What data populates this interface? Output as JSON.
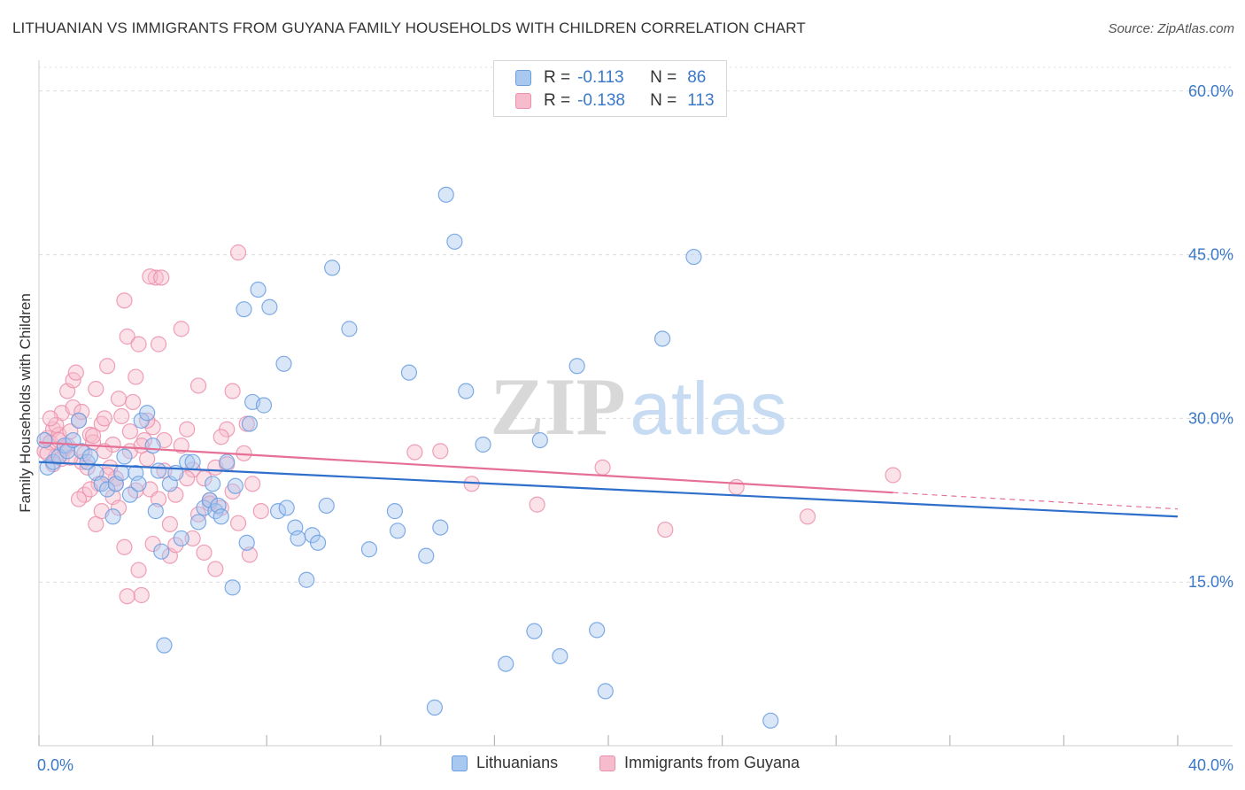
{
  "header": {
    "title": "LITHUANIAN VS IMMIGRANTS FROM GUYANA FAMILY HOUSEHOLDS WITH CHILDREN CORRELATION CHART",
    "source": "Source: ZipAtlas.com"
  },
  "watermark": {
    "zip": "ZIP",
    "atlas": "atlas"
  },
  "legend": {
    "r_label": "R =",
    "n_label": "N =",
    "entries": [
      {
        "r": "-0.113",
        "n": "86"
      },
      {
        "r": "-0.138",
        "n": "113"
      }
    ]
  },
  "colors": {
    "blue_fill": "#a9c8f0",
    "blue_stroke": "#6a9ee0",
    "blue_line": "#2f6fcc",
    "pink_fill": "#f6bccd",
    "pink_stroke": "#ec8fab",
    "pink_line": "#e66f96",
    "value_text": "#3a78c9",
    "grid": "#dcdcdc"
  },
  "chart_data": {
    "type": "scatter",
    "title": "LITHUANIAN VS IMMIGRANTS FROM GUYANA FAMILY HOUSEHOLDS WITH CHILDREN CORRELATION CHART",
    "xlabel": "",
    "ylabel": "Family Households with Children",
    "xlim": [
      0,
      40
    ],
    "ylim": [
      0,
      62.5
    ],
    "x_tick_labels": [
      "0.0%",
      "40.0%"
    ],
    "y_ticks": [
      15,
      30,
      45,
      60
    ],
    "y_tick_labels": [
      "15.0%",
      "30.0%",
      "45.0%",
      "60.0%"
    ],
    "grid": true,
    "legend_position": "top-center",
    "series": [
      {
        "name": "Lithuanians",
        "r": -0.113,
        "n": 86,
        "trend": {
          "x": [
            0,
            40
          ],
          "y": [
            26.0,
            21.0
          ]
        },
        "points": [
          [
            0.2,
            28.0
          ],
          [
            0.3,
            25.5
          ],
          [
            0.5,
            26.0
          ],
          [
            0.7,
            26.5
          ],
          [
            0.9,
            27.5
          ],
          [
            1.0,
            27.0
          ],
          [
            1.2,
            28.0
          ],
          [
            1.4,
            29.8
          ],
          [
            1.5,
            27.0
          ],
          [
            1.7,
            26.0
          ],
          [
            1.8,
            26.5
          ],
          [
            2.0,
            25.0
          ],
          [
            2.2,
            24.0
          ],
          [
            2.4,
            23.5
          ],
          [
            2.6,
            21.0
          ],
          [
            2.7,
            24.0
          ],
          [
            2.9,
            25.0
          ],
          [
            3.0,
            26.5
          ],
          [
            3.2,
            23.0
          ],
          [
            3.4,
            25.0
          ],
          [
            3.5,
            24.0
          ],
          [
            3.6,
            29.8
          ],
          [
            3.8,
            30.5
          ],
          [
            4.0,
            27.5
          ],
          [
            4.1,
            21.5
          ],
          [
            4.2,
            25.2
          ],
          [
            4.3,
            17.8
          ],
          [
            4.4,
            9.2
          ],
          [
            4.6,
            24.0
          ],
          [
            4.8,
            25.0
          ],
          [
            5.0,
            19.0
          ],
          [
            5.2,
            26.0
          ],
          [
            5.4,
            26.0
          ],
          [
            5.6,
            20.5
          ],
          [
            5.8,
            21.8
          ],
          [
            6.0,
            22.5
          ],
          [
            6.1,
            24.0
          ],
          [
            6.2,
            21.5
          ],
          [
            6.3,
            22.0
          ],
          [
            6.4,
            21.0
          ],
          [
            6.6,
            26.0
          ],
          [
            6.8,
            14.5
          ],
          [
            6.9,
            23.8
          ],
          [
            7.2,
            40.0
          ],
          [
            7.3,
            18.6
          ],
          [
            7.4,
            29.5
          ],
          [
            7.5,
            31.5
          ],
          [
            7.7,
            41.8
          ],
          [
            7.9,
            31.2
          ],
          [
            8.1,
            40.2
          ],
          [
            8.4,
            21.5
          ],
          [
            8.6,
            35.0
          ],
          [
            8.7,
            21.8
          ],
          [
            9.0,
            20.0
          ],
          [
            9.1,
            19.0
          ],
          [
            9.4,
            15.2
          ],
          [
            9.6,
            19.3
          ],
          [
            9.8,
            18.6
          ],
          [
            10.1,
            22.0
          ],
          [
            10.3,
            43.8
          ],
          [
            10.9,
            38.2
          ],
          [
            11.6,
            18.0
          ],
          [
            12.5,
            21.5
          ],
          [
            12.6,
            19.7
          ],
          [
            13.0,
            34.2
          ],
          [
            13.6,
            17.4
          ],
          [
            13.9,
            3.5
          ],
          [
            14.1,
            20.0
          ],
          [
            14.3,
            50.5
          ],
          [
            14.6,
            46.2
          ],
          [
            15.0,
            32.5
          ],
          [
            15.6,
            27.6
          ],
          [
            16.4,
            7.5
          ],
          [
            17.4,
            10.5
          ],
          [
            17.6,
            28.0
          ],
          [
            18.3,
            8.2
          ],
          [
            18.9,
            34.8
          ],
          [
            19.6,
            10.6
          ],
          [
            19.9,
            5.0
          ],
          [
            21.9,
            37.3
          ],
          [
            23.0,
            44.8
          ],
          [
            25.7,
            2.3
          ]
        ]
      },
      {
        "name": "Immigrants from Guyana",
        "r": -0.138,
        "n": 113,
        "trend": {
          "x": [
            0,
            30
          ],
          "y": [
            27.8,
            23.2
          ]
        },
        "trend_dashed": {
          "x": [
            30,
            40
          ],
          "y": [
            23.2,
            21.7
          ]
        },
        "points": [
          [
            0.2,
            27.0
          ],
          [
            0.3,
            28.2
          ],
          [
            0.4,
            27.8
          ],
          [
            0.5,
            29.0
          ],
          [
            0.6,
            26.5
          ],
          [
            0.7,
            28.5
          ],
          [
            0.8,
            30.5
          ],
          [
            0.9,
            27.2
          ],
          [
            1.0,
            32.5
          ],
          [
            1.1,
            28.8
          ],
          [
            1.2,
            33.5
          ],
          [
            1.3,
            34.2
          ],
          [
            1.4,
            29.8
          ],
          [
            1.5,
            26.0
          ],
          [
            1.6,
            23.0
          ],
          [
            1.7,
            25.5
          ],
          [
            1.8,
            28.5
          ],
          [
            1.9,
            27.8
          ],
          [
            2.0,
            32.7
          ],
          [
            2.1,
            24.0
          ],
          [
            2.2,
            29.5
          ],
          [
            2.3,
            30.0
          ],
          [
            2.4,
            34.8
          ],
          [
            2.5,
            25.5
          ],
          [
            2.6,
            22.8
          ],
          [
            2.7,
            24.5
          ],
          [
            2.8,
            21.8
          ],
          [
            2.9,
            30.2
          ],
          [
            3.0,
            40.8
          ],
          [
            3.1,
            37.5
          ],
          [
            3.2,
            27.0
          ],
          [
            3.3,
            31.5
          ],
          [
            3.4,
            33.8
          ],
          [
            3.5,
            36.8
          ],
          [
            3.6,
            13.8
          ],
          [
            3.7,
            28.0
          ],
          [
            3.8,
            26.3
          ],
          [
            3.9,
            23.5
          ],
          [
            4.0,
            29.2
          ],
          [
            4.1,
            42.9
          ],
          [
            4.2,
            36.8
          ],
          [
            4.4,
            25.2
          ],
          [
            4.6,
            17.4
          ],
          [
            4.8,
            18.4
          ],
          [
            5.0,
            38.2
          ],
          [
            5.2,
            29.0
          ],
          [
            5.4,
            25.3
          ],
          [
            5.6,
            33.0
          ],
          [
            5.8,
            24.5
          ],
          [
            6.0,
            22.5
          ],
          [
            6.2,
            16.2
          ],
          [
            6.4,
            21.8
          ],
          [
            6.6,
            29.0
          ],
          [
            6.8,
            32.5
          ],
          [
            7.0,
            45.2
          ],
          [
            7.3,
            29.5
          ],
          [
            7.5,
            24.0
          ],
          [
            7.8,
            21.5
          ],
          [
            0.3,
            26.8
          ],
          [
            0.5,
            25.8
          ],
          [
            0.6,
            29.4
          ],
          [
            0.8,
            26.3
          ],
          [
            1.0,
            27.5
          ],
          [
            1.2,
            31.0
          ],
          [
            1.4,
            22.6
          ],
          [
            1.6,
            26.8
          ],
          [
            1.8,
            23.5
          ],
          [
            2.0,
            20.3
          ],
          [
            2.2,
            21.5
          ],
          [
            2.4,
            24.8
          ],
          [
            2.6,
            27.6
          ],
          [
            2.8,
            31.8
          ],
          [
            3.0,
            18.2
          ],
          [
            3.2,
            28.8
          ],
          [
            3.4,
            23.4
          ],
          [
            3.6,
            27.5
          ],
          [
            3.8,
            29.8
          ],
          [
            4.0,
            18.5
          ],
          [
            4.2,
            22.6
          ],
          [
            4.4,
            28.0
          ],
          [
            4.6,
            20.3
          ],
          [
            4.8,
            23.0
          ],
          [
            5.0,
            27.5
          ],
          [
            5.2,
            24.5
          ],
          [
            5.4,
            19.0
          ],
          [
            5.6,
            21.2
          ],
          [
            5.8,
            17.7
          ],
          [
            6.0,
            22.2
          ],
          [
            6.2,
            25.5
          ],
          [
            6.4,
            28.3
          ],
          [
            6.6,
            25.8
          ],
          [
            6.8,
            23.3
          ],
          [
            7.0,
            20.4
          ],
          [
            7.2,
            26.8
          ],
          [
            7.4,
            17.5
          ],
          [
            0.4,
            30.0
          ],
          [
            0.7,
            28.0
          ],
          [
            1.1,
            26.4
          ],
          [
            1.5,
            30.6
          ],
          [
            1.9,
            28.4
          ],
          [
            2.3,
            27.0
          ],
          [
            2.7,
            24.0
          ],
          [
            3.1,
            13.7
          ],
          [
            3.5,
            16.1
          ],
          [
            3.9,
            43.0
          ],
          [
            4.3,
            42.9
          ],
          [
            13.2,
            26.9
          ],
          [
            14.1,
            27.0
          ],
          [
            15.2,
            24.0
          ],
          [
            17.5,
            22.1
          ],
          [
            19.8,
            25.5
          ],
          [
            22.0,
            19.8
          ],
          [
            24.5,
            23.7
          ],
          [
            27.0,
            21.0
          ],
          [
            30.0,
            24.8
          ]
        ]
      }
    ]
  },
  "bottom_legend": [
    "Lithuanians",
    "Immigrants from Guyana"
  ]
}
